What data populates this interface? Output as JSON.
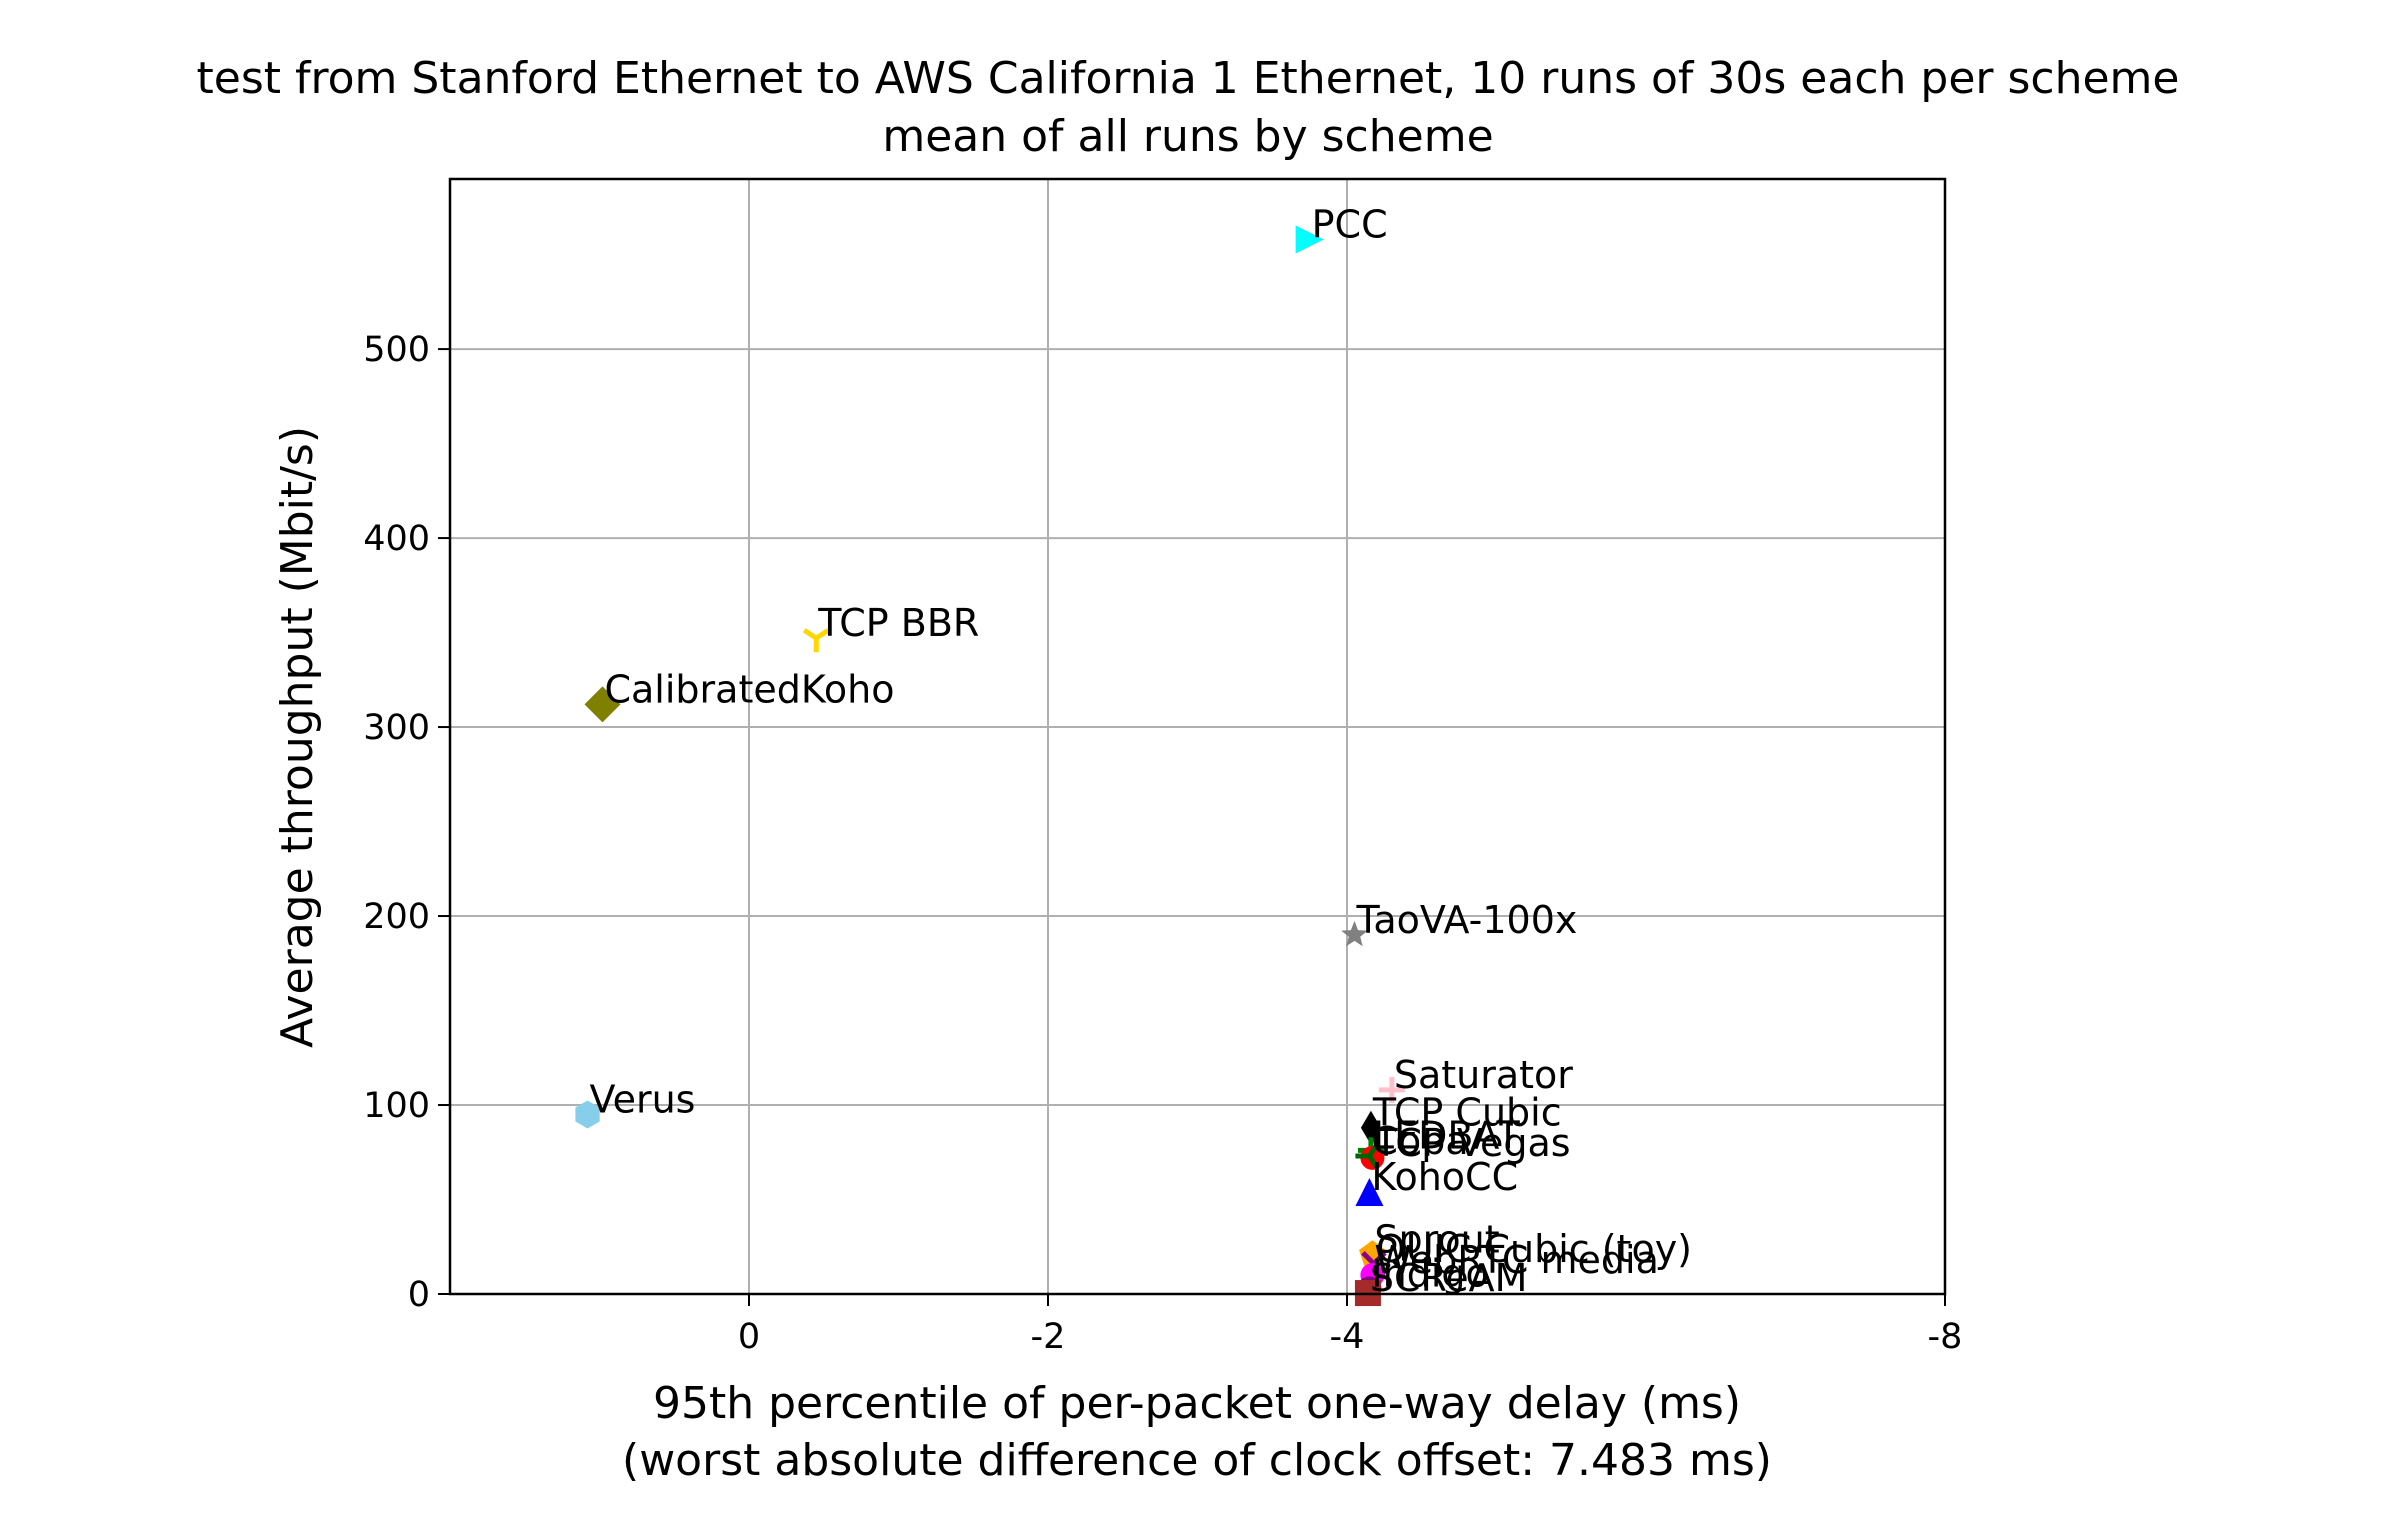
{
  "chart_data": {
    "type": "scatter",
    "title": "test from Stanford Ethernet to AWS California 1 Ethernet, 10 runs of 30s each per scheme",
    "subtitle": "mean of all runs by scheme",
    "xlabel": "95th percentile of per-packet one-way delay (ms)",
    "xlabel_sub": "(worst absolute difference of clock offset: 7.483 ms)",
    "ylabel": "Average throughput (Mbit/s)",
    "x_inverted": true,
    "xlim": [
      2.0,
      -8.0
    ],
    "ylim": [
      0,
      590
    ],
    "x_ticks": [
      0,
      -2,
      -4,
      -8
    ],
    "x_tick_labels": [
      "0",
      "-2",
      "-4",
      "-8"
    ],
    "y_ticks": [
      0,
      100,
      200,
      300,
      400,
      500
    ],
    "y_tick_labels": [
      "0",
      "100",
      "200",
      "300",
      "400",
      "500"
    ],
    "grid": true,
    "series": [
      {
        "name": "PCC",
        "x": -3.75,
        "y": 558,
        "marker": "triangle-right",
        "color": "#00ffff"
      },
      {
        "name": "TCP BBR",
        "x": -0.45,
        "y": 347,
        "marker": "tri-down",
        "color": "#ffd700"
      },
      {
        "name": "CalibratedKoho",
        "x": 0.98,
        "y": 312,
        "marker": "diamond",
        "color": "#808000"
      },
      {
        "name": "TaoVA-100x",
        "x": -4.05,
        "y": 190,
        "marker": "star",
        "color": "#808080"
      },
      {
        "name": "Verus",
        "x": 1.08,
        "y": 95,
        "marker": "hexagon",
        "color": "#87ceeb"
      },
      {
        "name": "Saturator",
        "x": -4.3,
        "y": 108,
        "marker": "plus",
        "color": "#ffc0cb"
      },
      {
        "name": "TCP Cubic",
        "x": -4.16,
        "y": 88,
        "marker": "thin-diamond",
        "color": "#000000"
      },
      {
        "name": "LEDBAT",
        "x": -4.16,
        "y": 76,
        "marker": "plus",
        "color": "#008000"
      },
      {
        "name": "TCP Vegas",
        "x": -4.17,
        "y": 72,
        "marker": "circle",
        "color": "#ff0000"
      },
      {
        "name": "Copa",
        "x": -4.15,
        "y": 73,
        "marker": "tri-left",
        "color": "#006400"
      },
      {
        "name": "KohoCC",
        "x": -4.15,
        "y": 54,
        "marker": "triangle-up",
        "color": "#0000ff"
      },
      {
        "name": "Sprout",
        "x": -4.17,
        "y": 21,
        "marker": "pentagon",
        "color": "#ffa500"
      },
      {
        "name": "QUIC Cubic (toy)",
        "x": -4.18,
        "y": 16,
        "marker": "x",
        "color": "#8b008b"
      },
      {
        "name": "WebRTC media",
        "x": -4.17,
        "y": 10,
        "marker": "circle",
        "color": "#ff00ff"
      },
      {
        "name": "Indigo",
        "x": -4.15,
        "y": 3,
        "marker": "circle",
        "color": "#800080"
      },
      {
        "name": "SCReAM",
        "x": -4.14,
        "y": 0.5,
        "marker": "square",
        "color": "#a52a2a"
      }
    ]
  }
}
